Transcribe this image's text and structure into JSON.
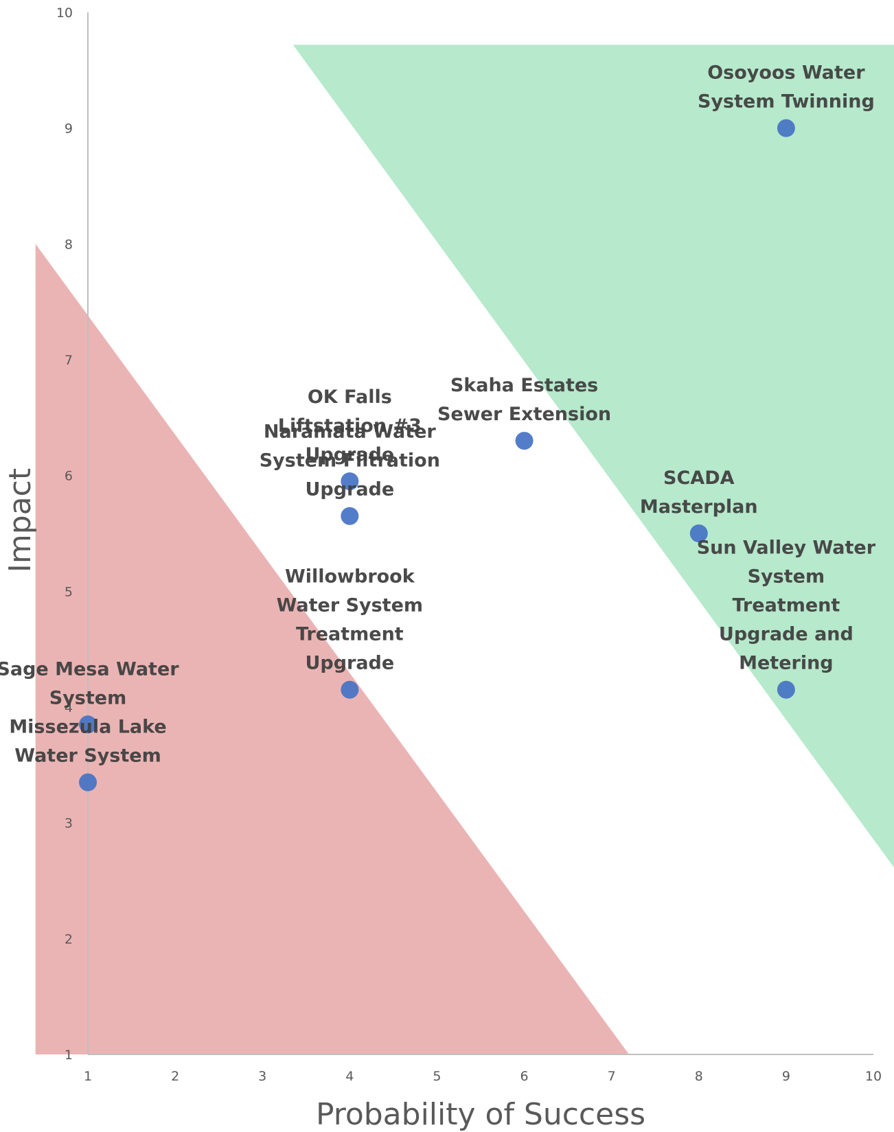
{
  "chart_data": {
    "type": "scatter",
    "title": "",
    "xlabel": "Probability of Success",
    "ylabel": "Impact",
    "xlim": [
      1,
      10
    ],
    "ylim": [
      1,
      10
    ],
    "x_ticks": [
      "1",
      "2",
      "3",
      "4",
      "5",
      "6",
      "7",
      "8",
      "9",
      "10"
    ],
    "y_ticks": [
      "1",
      "2",
      "3",
      "4",
      "5",
      "6",
      "7",
      "8",
      "9",
      "10"
    ],
    "grid": false,
    "legend": "none",
    "colors": {
      "point": "#4472c4",
      "axis": "#bfbfbf",
      "tick_text": "#595959",
      "label_text": "#404040",
      "high_zone": "#6fd39a",
      "low_zone": "#d97070"
    },
    "zones": [
      {
        "kind": "high-priority",
        "color": "#6fd39a",
        "opacity": 0.5,
        "vertices": [
          [
            3.35,
            9.72
          ],
          [
            10.25,
            9.72
          ],
          [
            10.25,
            2.6
          ]
        ]
      },
      {
        "kind": "low-priority",
        "color": "#d97070",
        "opacity": 0.52,
        "vertices": [
          [
            0.4,
            8.0
          ],
          [
            0.4,
            1.0
          ],
          [
            7.2,
            1.0
          ]
        ]
      }
    ],
    "points": [
      {
        "name": "Osoyoos Water System Twinning",
        "lines": [
          "Osoyoos Water",
          "System Twinning"
        ],
        "x": 9,
        "y": 9.0
      },
      {
        "name": "OK Falls Liftstation #3 Upgrade",
        "lines": [
          "OK Falls",
          "Liftstation #3",
          "Upgrade"
        ],
        "x": 4,
        "y": 5.95
      },
      {
        "name": "Naramata Water System Filtration Upgrade",
        "lines": [
          "Naramata Water",
          "System Filtration",
          "Upgrade"
        ],
        "x": 4,
        "y": 5.65
      },
      {
        "name": "Skaha Estates Sewer Extension",
        "lines": [
          "Skaha Estates",
          "Sewer Extension"
        ],
        "x": 6,
        "y": 6.3
      },
      {
        "name": "SCADA Masterplan",
        "lines": [
          "SCADA",
          "Masterplan"
        ],
        "x": 8,
        "y": 5.5
      },
      {
        "name": "Sun Valley Water System Treatment Upgrade and Metering",
        "lines": [
          "Sun Valley Water",
          "System",
          "Treatment",
          "Upgrade and",
          "Metering"
        ],
        "x": 9,
        "y": 4.15
      },
      {
        "name": "Willowbrook Water System Treatment Upgrade",
        "lines": [
          "Willowbrook",
          "Water System",
          "Treatment",
          "Upgrade"
        ],
        "x": 4,
        "y": 4.15
      },
      {
        "name": "Sage Mesa Water System",
        "lines": [
          "Sage Mesa Water",
          "System"
        ],
        "x": 1,
        "y": 3.85
      },
      {
        "name": "Missezula Lake Water System",
        "lines": [
          "Missezula Lake",
          "Water System"
        ],
        "x": 1,
        "y": 3.35
      }
    ]
  }
}
